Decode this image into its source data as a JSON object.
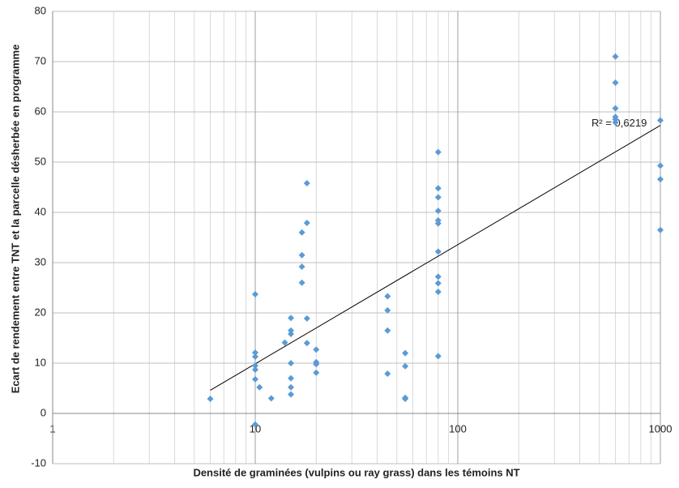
{
  "chart_data": {
    "type": "scatter",
    "xlabel": "Densité de graminées (vulpins ou ray grass) dans les témoins NT",
    "ylabel": "Ecart de rendement entre TNT et la parcelle désherbée en programme",
    "x": [
      6,
      10,
      10,
      10,
      10,
      10,
      10,
      10,
      10.5,
      12,
      14,
      15,
      15,
      15,
      15,
      15,
      15,
      15,
      17,
      17,
      17,
      17,
      18,
      18,
      18,
      18,
      20,
      20,
      20,
      20,
      45,
      45,
      45,
      45,
      55,
      55,
      55,
      55,
      80,
      80,
      80,
      80,
      80,
      80,
      80,
      80,
      80,
      80,
      80,
      600,
      600,
      600,
      600,
      600,
      600,
      1000,
      1000,
      1000,
      1000
    ],
    "values": [
      2.9,
      23.7,
      12.1,
      11.3,
      9.5,
      8.7,
      6.8,
      -2.2,
      5.2,
      3.0,
      14.1,
      19.0,
      16.5,
      15.8,
      10.0,
      7.0,
      5.2,
      3.8,
      36.0,
      31.5,
      29.2,
      26.0,
      45.8,
      37.9,
      18.9,
      14.0,
      12.7,
      10.2,
      9.8,
      8.1,
      23.3,
      20.5,
      16.5,
      7.9,
      12.0,
      9.4,
      3.1,
      2.9,
      52.0,
      44.8,
      43.0,
      40.3,
      38.4,
      37.8,
      32.2,
      27.2,
      25.9,
      24.2,
      11.4,
      71.0,
      65.8,
      60.7,
      59.0,
      58.5,
      57.9,
      58.3,
      49.3,
      46.6,
      36.5
    ],
    "color": "#5b9bd5",
    "trendline": {
      "x": [
        6,
        1000
      ],
      "values": [
        4.6,
        57.3
      ],
      "color": "#000000",
      "annotation": "R² = 0,6219"
    },
    "xscale": "log",
    "xlim": [
      1,
      1000
    ],
    "xticks": [
      1,
      10,
      100,
      1000
    ],
    "ylim": [
      -10,
      80
    ],
    "yticks": [
      -10,
      0,
      10,
      20,
      30,
      40,
      50,
      60,
      70,
      80
    ],
    "grid": true,
    "minor_grid": true
  }
}
